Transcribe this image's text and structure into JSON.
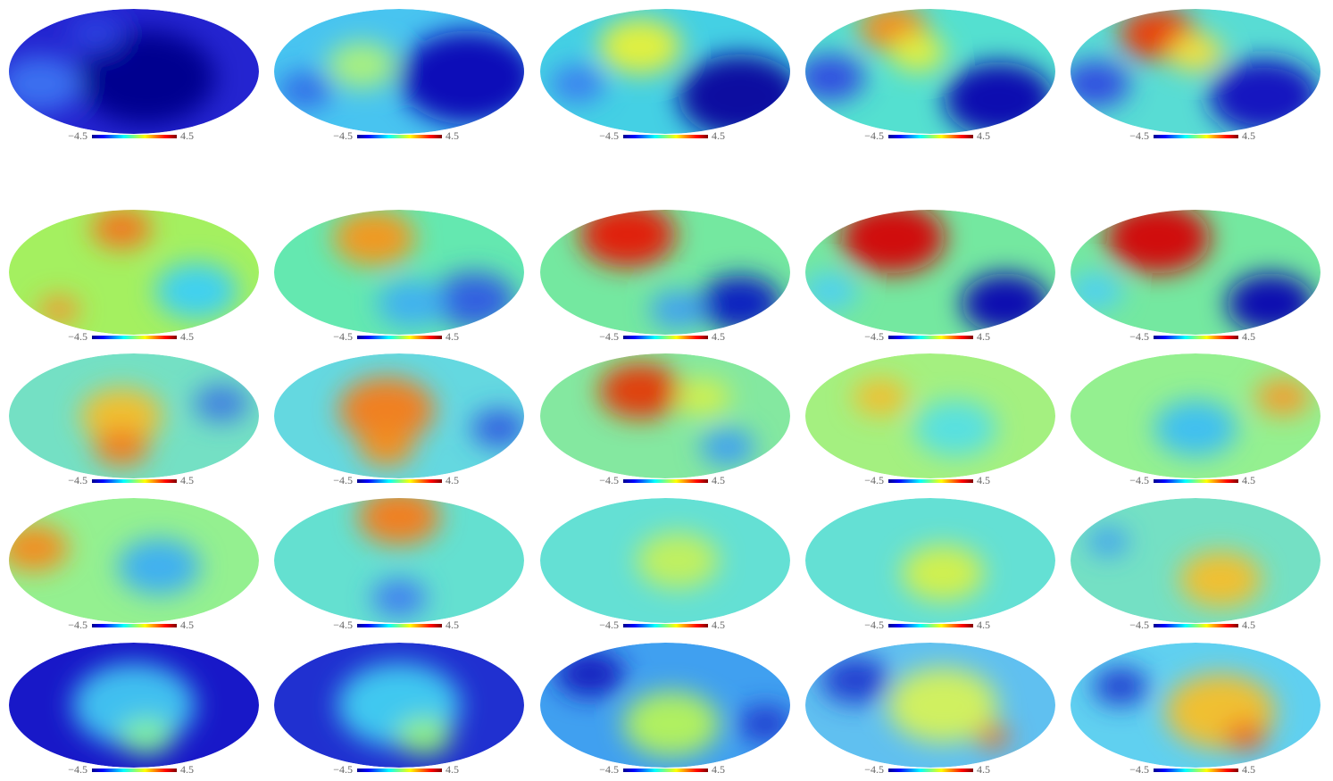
{
  "panels": [
    {
      "colorbar_min": "−4.5",
      "colorbar_max": "4.5"
    },
    {
      "colorbar_min": "−4.5",
      "colorbar_max": "4.5"
    },
    {
      "colorbar_min": "−4.5",
      "colorbar_max": "4.5"
    },
    {
      "colorbar_min": "−4.5",
      "colorbar_max": "4.5"
    },
    {
      "colorbar_min": "−4.5",
      "colorbar_max": "4.5"
    },
    {
      "colorbar_min": "−4.5",
      "colorbar_max": "4.5"
    },
    {
      "colorbar_min": "−4.5",
      "colorbar_max": "4.5"
    },
    {
      "colorbar_min": "−4.5",
      "colorbar_max": "4.5"
    },
    {
      "colorbar_min": "−4.5",
      "colorbar_max": "4.5"
    },
    {
      "colorbar_min": "−4.5",
      "colorbar_max": "4.5"
    },
    {
      "colorbar_min": "−4.5",
      "colorbar_max": "4.5"
    },
    {
      "colorbar_min": "−4.5",
      "colorbar_max": "4.5"
    },
    {
      "colorbar_min": "−4.5",
      "colorbar_max": "4.5"
    },
    {
      "colorbar_min": "−4.5",
      "colorbar_max": "4.5"
    },
    {
      "colorbar_min": "−4.5",
      "colorbar_max": "4.5"
    },
    {
      "colorbar_min": "−4.5",
      "colorbar_max": "4.5"
    },
    {
      "colorbar_min": "−4.5",
      "colorbar_max": "4.5"
    },
    {
      "colorbar_min": "−4.5",
      "colorbar_max": "4.5"
    },
    {
      "colorbar_min": "−4.5",
      "colorbar_max": "4.5"
    },
    {
      "colorbar_min": "−4.5",
      "colorbar_max": "4.5"
    },
    {
      "colorbar_min": "−4.5",
      "colorbar_max": "4.5"
    },
    {
      "colorbar_min": "−4.5",
      "colorbar_max": "4.5"
    },
    {
      "colorbar_min": "−4.5",
      "colorbar_max": "4.5"
    },
    {
      "colorbar_min": "−4.5",
      "colorbar_max": "4.5"
    },
    {
      "colorbar_min": "−4.5",
      "colorbar_max": "4.5"
    }
  ]
}
